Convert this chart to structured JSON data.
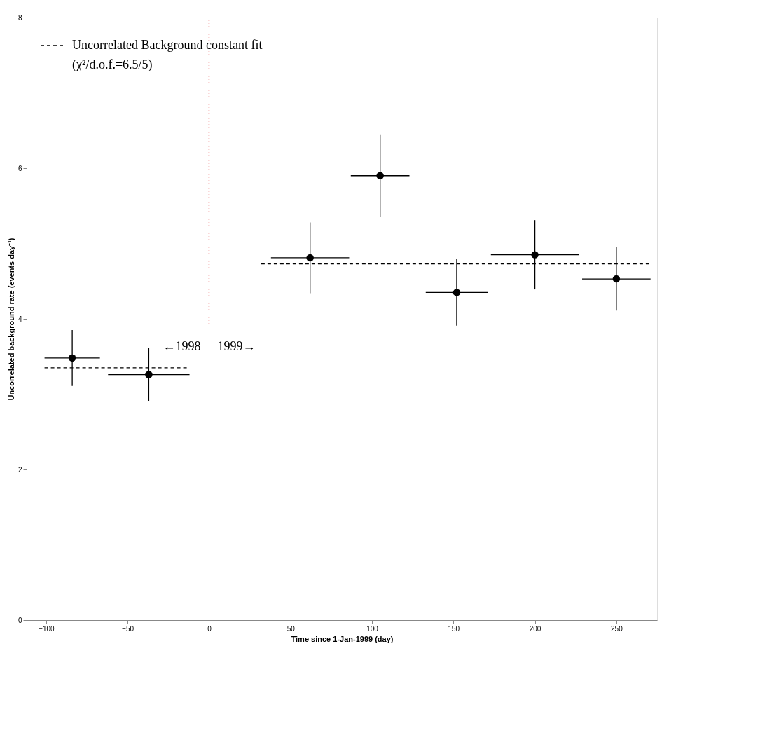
{
  "chart_data": {
    "type": "scatter",
    "xlabel": "Time since 1-Jan-1999 (day)",
    "ylabel": "Uncorrelated background rate (events day⁻¹)",
    "xlim": [
      -112,
      275
    ],
    "xticks": [
      -100,
      -50,
      0,
      50,
      100,
      150,
      200,
      250
    ],
    "ylim": [
      0,
      8
    ],
    "yticks": [
      0,
      2,
      4,
      6,
      8
    ],
    "grid": false,
    "legend": "top left",
    "series": [
      {
        "marker": "circle",
        "color": "#000000",
        "x": [
          -84,
          -37,
          62,
          105,
          152,
          200,
          250
        ],
        "values": [
          3.48,
          3.26,
          4.81,
          5.9,
          4.35,
          4.85,
          4.53
        ],
        "errors": [
          0.37,
          0.35,
          0.47,
          0.55,
          0.44,
          0.46,
          0.42
        ],
        "xerrors": [
          17,
          25,
          24,
          18,
          19,
          27,
          21
        ]
      },
      {
        "type": "line",
        "name": "Uncorrelated Background constant fit",
        "color": "#000000",
        "line_style": "dashed",
        "x": [
          -101,
          -12,
          10,
          32,
          270
        ],
        "values": [
          3.35,
          3.35,
          null,
          4.73,
          4.73
        ]
      }
    ],
    "ref_lines": [
      {
        "axis": "x",
        "value": 0,
        "color": "#e03030",
        "line_style": "dotted"
      }
    ],
    "annotations": [
      "(χ²/d.o.f.=6.5/5)",
      "←1998",
      "1999→"
    ]
  }
}
